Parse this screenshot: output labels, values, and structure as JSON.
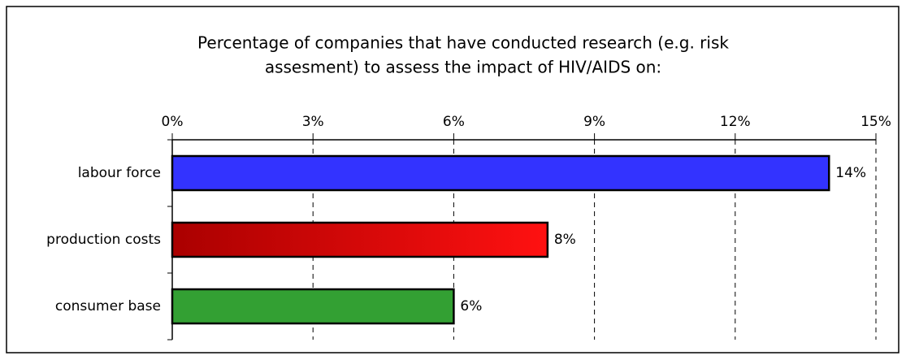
{
  "chart_data": {
    "type": "hbar",
    "title": [
      "Percentage of companies that have conducted research (e.g. risk",
      "assesment) to assess the impact of HIV/AIDS on:"
    ],
    "categories": [
      "labour force",
      "production costs",
      "consumer base"
    ],
    "values": [
      14,
      8,
      6
    ],
    "value_labels": [
      "14%",
      "8%",
      "6%"
    ],
    "colors": [
      "#3333ff",
      "#ee0000",
      "#33a033"
    ],
    "xlim": [
      0,
      15
    ],
    "xticks": [
      {
        "value": 0,
        "label": "0%"
      },
      {
        "value": 3,
        "label": "3%"
      },
      {
        "value": 6,
        "label": "6%"
      },
      {
        "value": 9,
        "label": "9%"
      },
      {
        "value": 12,
        "label": "12%"
      },
      {
        "value": 15,
        "label": "15%"
      }
    ],
    "grid": true
  }
}
